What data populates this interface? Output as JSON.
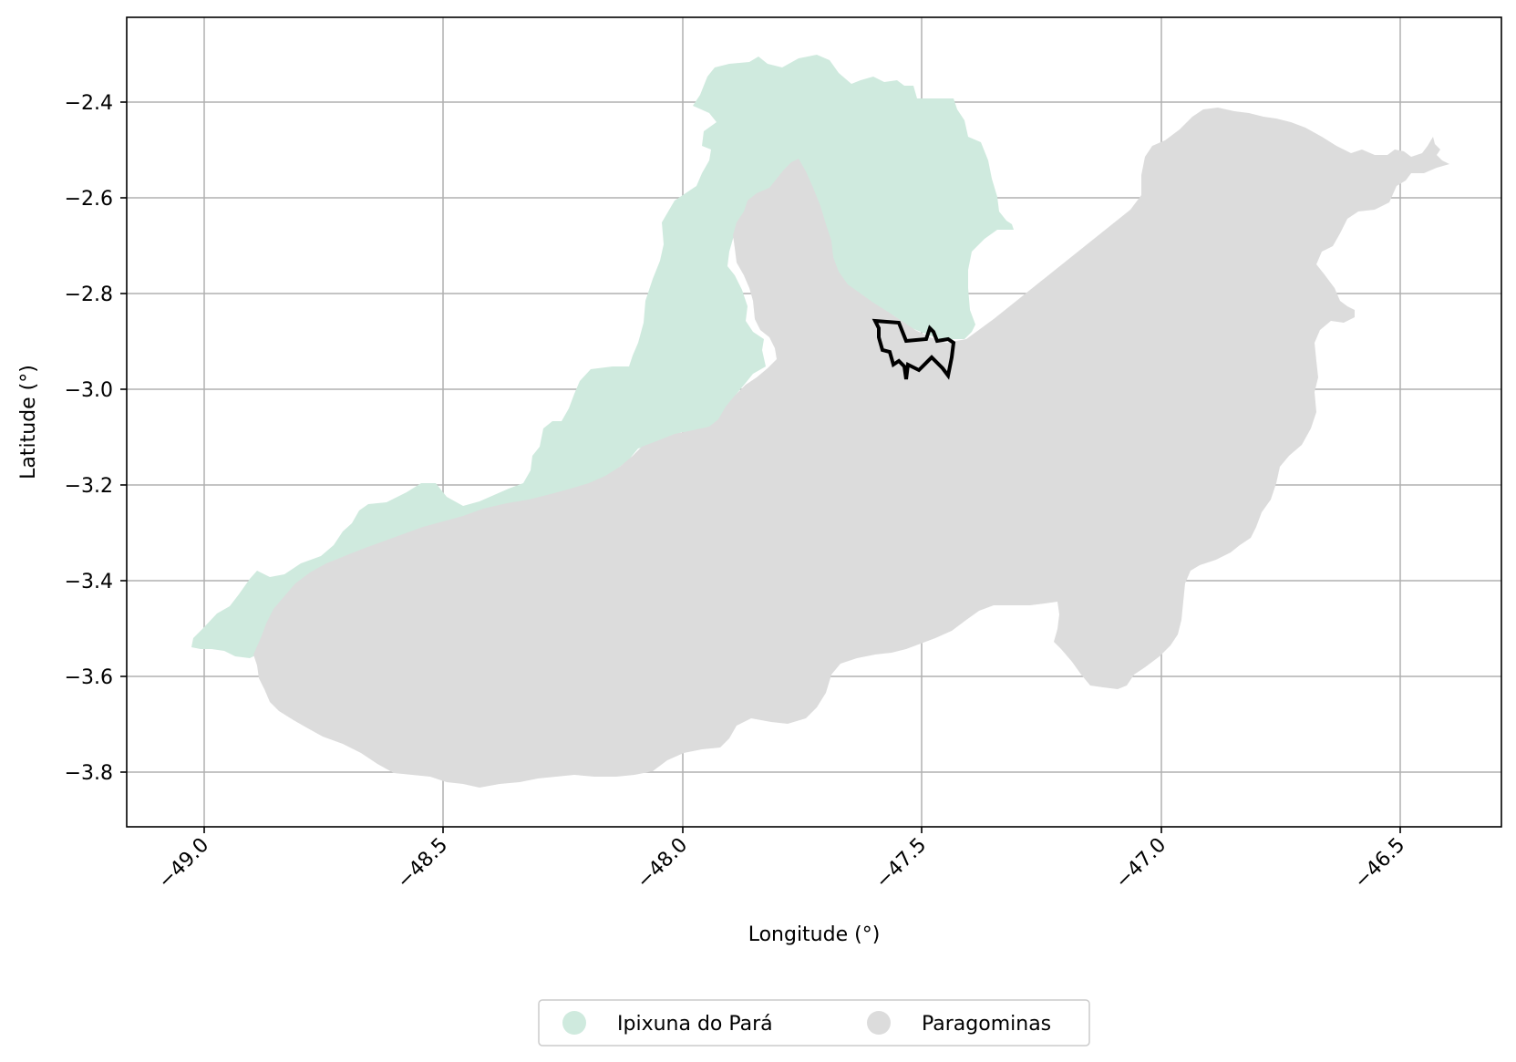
{
  "map": {
    "x_axis_label": "Longitude (°)",
    "y_axis_label": "Latitude (°)",
    "x_ticks": [
      "−49.0",
      "−48.5",
      "−48.0",
      "−47.5",
      "−47.0",
      "−46.5"
    ],
    "y_ticks": [
      "−2.4",
      "−2.6",
      "−2.8",
      "−3.0",
      "−3.2",
      "−3.4",
      "−3.6",
      "−3.8"
    ],
    "x_range": [
      -49.16,
      -46.28
    ],
    "y_range": [
      -3.91,
      -2.22
    ],
    "grid": true,
    "legend_position": "bottom-center",
    "legend": [
      {
        "label": "Ipixuna do Pará",
        "color": "#cfeade"
      },
      {
        "label": "Paragominas",
        "color": "#dcdcdc"
      }
    ],
    "regions": [
      {
        "name": "Ipixuna do Pará",
        "color": "#cfeade"
      },
      {
        "name": "Paragominas",
        "color": "#dcdcdc"
      }
    ],
    "highlight_outline_color": "#000000"
  }
}
